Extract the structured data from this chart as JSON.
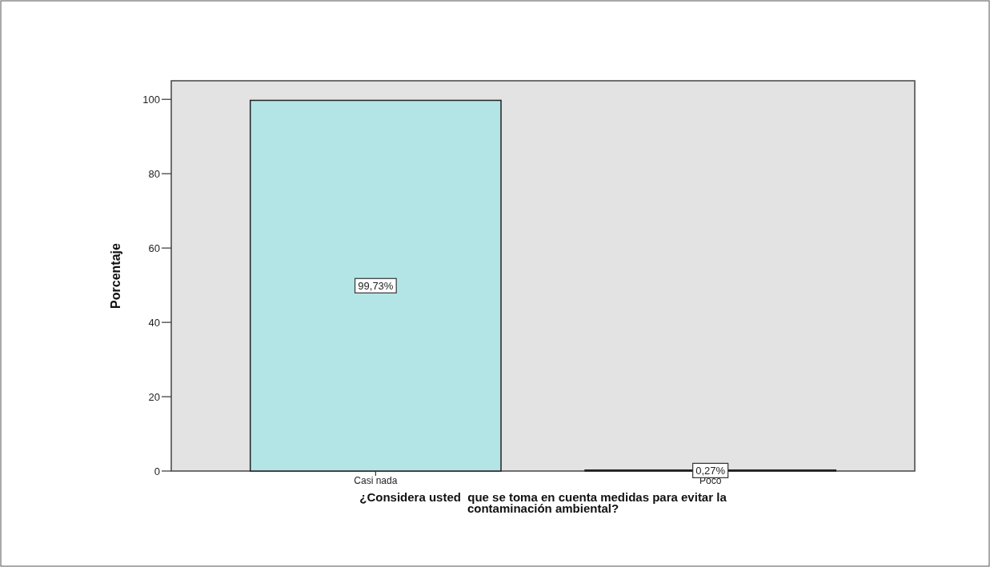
{
  "chart_data": {
    "type": "bar",
    "xlabel": "¿Considera usted  que se toma en cuenta medidas para evitar la\ncontaminación ambiental?",
    "ylabel": "Porcentaje",
    "categories": [
      "Casi nada",
      "Poco"
    ],
    "values": [
      99.73,
      0.27
    ],
    "value_labels": [
      "99,73%",
      "0,27%"
    ],
    "color": "#b4e5e6",
    "ylim": [
      0,
      105
    ],
    "yticks": [
      0,
      20,
      40,
      60,
      80,
      100
    ],
    "grid": false
  }
}
